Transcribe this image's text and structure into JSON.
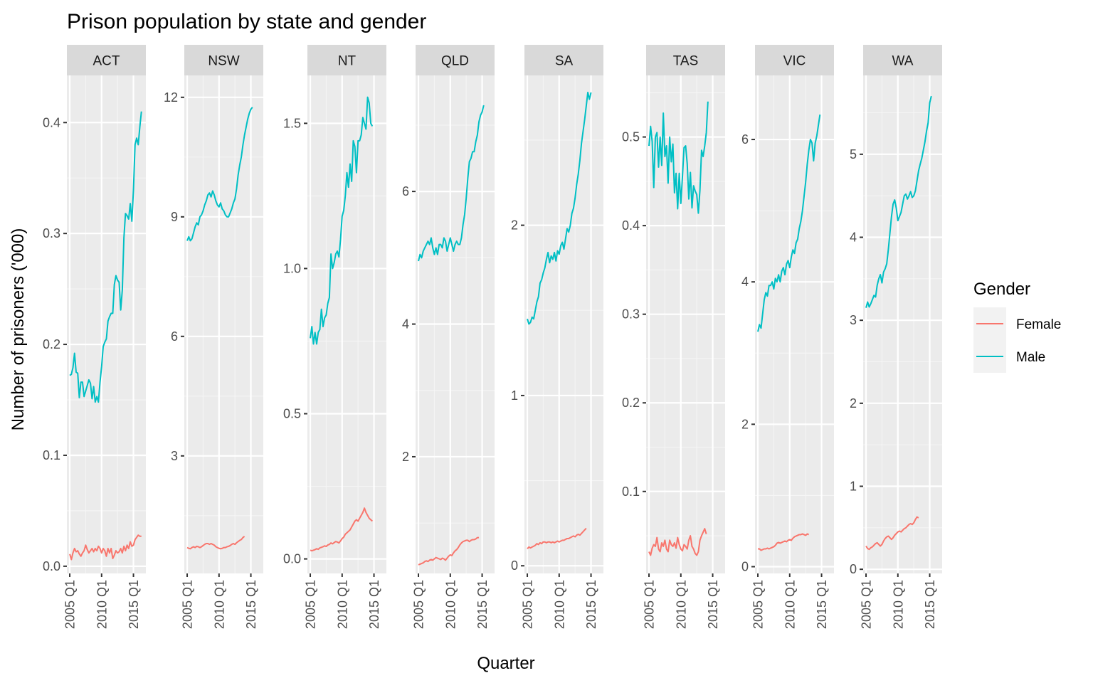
{
  "chart_data": {
    "type": "line",
    "title": "Prison population by state and gender",
    "xlabel": "Quarter",
    "ylabel": "Number of prisoners ('000)",
    "x_ticks": [
      "2005 Q1",
      "2010 Q1",
      "2015 Q1"
    ],
    "x_tick_values": [
      2005,
      2010,
      2015
    ],
    "x_range": [
      2004.55,
      2016.95
    ],
    "grid": true,
    "facet_by": "state",
    "legend": {
      "title": "Gender",
      "placement": "right",
      "entries": [
        {
          "name": "Female",
          "color": "#F8766D"
        },
        {
          "name": "Male",
          "color": "#00BFC4"
        }
      ]
    },
    "series_years": [
      2005.0,
      2005.25,
      2005.5,
      2005.75,
      2006.0,
      2006.25,
      2006.5,
      2006.75,
      2007.0,
      2007.25,
      2007.5,
      2007.75,
      2008.0,
      2008.25,
      2008.5,
      2008.75,
      2009.0,
      2009.25,
      2009.5,
      2009.75,
      2010.0,
      2010.25,
      2010.5,
      2010.75,
      2011.0,
      2011.25,
      2011.5,
      2011.75,
      2012.0,
      2012.25,
      2012.5,
      2012.75,
      2013.0,
      2013.25,
      2013.5,
      2013.75,
      2014.0,
      2014.25,
      2014.5,
      2014.75,
      2015.0,
      2015.25,
      2015.5,
      2015.75,
      2016.0,
      2016.25,
      2016.5,
      2016.75
    ],
    "panels": [
      {
        "state": "ACT",
        "y_range": [
          -0.0065,
          0.4425
        ],
        "y_ticks": [
          0.0,
          0.1,
          0.2,
          0.3,
          0.4
        ],
        "y_tick_labels": [
          "0.0",
          "0.1",
          "0.2",
          "0.3",
          "0.4"
        ],
        "series": [
          {
            "name": "Male",
            "values": [
              0.172,
              0.173,
              0.179,
              0.192,
              0.175,
              0.174,
              0.152,
              0.166,
              0.166,
              0.153,
              0.158,
              0.163,
              0.168,
              0.165,
              0.151,
              0.162,
              0.148,
              0.153,
              0.148,
              0.166,
              0.18,
              0.198,
              0.202,
              0.205,
              0.221,
              0.225,
              0.228,
              0.228,
              0.254,
              0.262,
              0.258,
              0.256,
              0.231,
              0.249,
              0.296,
              0.318,
              0.316,
              0.313,
              0.327,
              0.311,
              0.339,
              0.38,
              0.386,
              0.38,
              0.396,
              0.41
            ]
          },
          {
            "name": "Female",
            "values": [
              0.011,
              0.006,
              0.012,
              0.016,
              0.013,
              0.014,
              0.011,
              0.009,
              0.012,
              0.014,
              0.019,
              0.015,
              0.012,
              0.014,
              0.016,
              0.013,
              0.016,
              0.014,
              0.018,
              0.016,
              0.012,
              0.016,
              0.014,
              0.009,
              0.016,
              0.012,
              0.016,
              0.007,
              0.01,
              0.014,
              0.012,
              0.013,
              0.016,
              0.012,
              0.018,
              0.014,
              0.019,
              0.016,
              0.022,
              0.018,
              0.019,
              0.024,
              0.026,
              0.028,
              0.027,
              0.027
            ]
          }
        ]
      },
      {
        "state": "NSW",
        "y_range": [
          0.05,
          12.55
        ],
        "y_ticks": [
          3,
          6,
          9,
          12
        ],
        "y_tick_labels": [
          "3",
          "6",
          "9",
          "12"
        ],
        "series": [
          {
            "name": "Male",
            "values": [
              8.4,
              8.5,
              8.4,
              8.45,
              8.6,
              8.75,
              8.85,
              8.8,
              9.0,
              9.05,
              9.15,
              9.3,
              9.4,
              9.55,
              9.6,
              9.5,
              9.65,
              9.55,
              9.4,
              9.3,
              9.25,
              9.35,
              9.2,
              9.15,
              9.05,
              9.0,
              9.0,
              9.1,
              9.2,
              9.35,
              9.45,
              9.7,
              10.05,
              10.3,
              10.5,
              10.8,
              11.05,
              11.25,
              11.45,
              11.6,
              11.7,
              11.75
            ]
          },
          {
            "name": "Female",
            "values": [
              0.7,
              0.68,
              0.67,
              0.7,
              0.72,
              0.7,
              0.73,
              0.72,
              0.7,
              0.72,
              0.75,
              0.78,
              0.8,
              0.8,
              0.78,
              0.8,
              0.78,
              0.76,
              0.72,
              0.7,
              0.68,
              0.67,
              0.68,
              0.7,
              0.7,
              0.72,
              0.73,
              0.75,
              0.78,
              0.8,
              0.78,
              0.82,
              0.85,
              0.88,
              0.9,
              0.95,
              0.98
            ]
          }
        ]
      },
      {
        "state": "NT",
        "y_range": [
          -0.05,
          1.665
        ],
        "y_ticks": [
          0.0,
          0.5,
          1.0,
          1.5
        ],
        "y_tick_labels": [
          "0.0",
          "0.5",
          "1.0",
          "1.5"
        ],
        "series": [
          {
            "name": "Male",
            "values": [
              0.76,
              0.8,
              0.74,
              0.78,
              0.74,
              0.78,
              0.79,
              0.86,
              0.8,
              0.83,
              0.84,
              0.88,
              0.9,
              1.05,
              1.0,
              1.02,
              1.05,
              1.06,
              1.04,
              1.1,
              1.18,
              1.2,
              1.25,
              1.33,
              1.28,
              1.36,
              1.3,
              1.44,
              1.42,
              1.33,
              1.44,
              1.44,
              1.46,
              1.52,
              1.5,
              1.48,
              1.59,
              1.57,
              1.5,
              1.49
            ]
          },
          {
            "name": "Female",
            "values": [
              0.03,
              0.028,
              0.03,
              0.032,
              0.035,
              0.033,
              0.038,
              0.04,
              0.042,
              0.045,
              0.043,
              0.048,
              0.05,
              0.055,
              0.052,
              0.056,
              0.06,
              0.058,
              0.055,
              0.062,
              0.07,
              0.075,
              0.085,
              0.09,
              0.095,
              0.1,
              0.11,
              0.12,
              0.13,
              0.135,
              0.13,
              0.14,
              0.15,
              0.16,
              0.175,
              0.16,
              0.15,
              0.14,
              0.135,
              0.13
            ]
          }
        ]
      },
      {
        "state": "QLD",
        "y_range": [
          0.24,
          7.75
        ],
        "y_ticks": [
          2,
          4,
          6
        ],
        "y_tick_labels": [
          "2",
          "4",
          "6"
        ],
        "series": [
          {
            "name": "Male",
            "values": [
              4.95,
              5.05,
              5.0,
              5.1,
              5.15,
              5.2,
              5.25,
              5.2,
              5.3,
              5.15,
              5.05,
              5.15,
              5.05,
              5.2,
              5.2,
              5.15,
              5.3,
              5.25,
              5.1,
              5.2,
              5.3,
              5.2,
              5.1,
              5.2,
              5.25,
              5.2,
              5.2,
              5.3,
              5.5,
              5.65,
              5.9,
              6.2,
              6.45,
              6.5,
              6.6,
              6.6,
              6.75,
              6.85,
              7.05,
              7.15,
              7.2,
              7.3
            ]
          },
          {
            "name": "Female",
            "values": [
              0.37,
              0.38,
              0.39,
              0.4,
              0.42,
              0.43,
              0.42,
              0.44,
              0.45,
              0.44,
              0.46,
              0.48,
              0.47,
              0.46,
              0.45,
              0.47,
              0.46,
              0.44,
              0.47,
              0.5,
              0.52,
              0.51,
              0.55,
              0.58,
              0.6,
              0.63,
              0.67,
              0.7,
              0.72,
              0.73,
              0.74,
              0.74,
              0.72,
              0.74,
              0.75,
              0.75,
              0.76,
              0.78,
              0.78
            ]
          }
        ]
      },
      {
        "state": "SA",
        "y_range": [
          -0.045,
          2.88
        ],
        "y_ticks": [
          0,
          1,
          2
        ],
        "y_tick_labels": [
          "0",
          "1",
          "2"
        ],
        "series": [
          {
            "name": "Male",
            "values": [
              1.45,
              1.42,
              1.43,
              1.46,
              1.45,
              1.5,
              1.55,
              1.58,
              1.66,
              1.68,
              1.72,
              1.75,
              1.8,
              1.84,
              1.78,
              1.82,
              1.8,
              1.84,
              1.79,
              1.85,
              1.83,
              1.88,
              1.9,
              1.86,
              1.92,
              1.98,
              1.96,
              2.0,
              2.07,
              2.1,
              2.16,
              2.24,
              2.3,
              2.38,
              2.48,
              2.55,
              2.62,
              2.7,
              2.78,
              2.74,
              2.78
            ]
          },
          {
            "name": "Female",
            "values": [
              0.1,
              0.11,
              0.105,
              0.11,
              0.115,
              0.12,
              0.13,
              0.125,
              0.135,
              0.13,
              0.14,
              0.14,
              0.135,
              0.14,
              0.14,
              0.135,
              0.14,
              0.135,
              0.14,
              0.145,
              0.14,
              0.145,
              0.15,
              0.15,
              0.155,
              0.16,
              0.16,
              0.165,
              0.17,
              0.175,
              0.17,
              0.18,
              0.185,
              0.18,
              0.19,
              0.2,
              0.21,
              0.22
            ]
          }
        ]
      },
      {
        "state": "TAS",
        "y_range": [
          0.0075,
          0.5695
        ],
        "y_ticks": [
          0.1,
          0.2,
          0.3,
          0.4,
          0.5
        ],
        "y_tick_labels": [
          "0.1",
          "0.2",
          "0.3",
          "0.4",
          "0.5"
        ],
        "series": [
          {
            "name": "Male",
            "values": [
              0.49,
              0.512,
              0.495,
              0.443,
              0.5,
              0.505,
              0.466,
              0.5,
              0.468,
              0.527,
              0.478,
              0.49,
              0.448,
              0.5,
              0.472,
              0.492,
              0.437,
              0.459,
              0.419,
              0.459,
              0.425,
              0.455,
              0.488,
              0.49,
              0.47,
              0.43,
              0.46,
              0.42,
              0.445,
              0.439,
              0.435,
              0.414,
              0.44,
              0.485,
              0.478,
              0.49,
              0.505,
              0.54
            ]
          },
          {
            "name": "Female",
            "values": [
              0.032,
              0.028,
              0.036,
              0.04,
              0.038,
              0.048,
              0.035,
              0.032,
              0.042,
              0.038,
              0.045,
              0.035,
              0.032,
              0.045,
              0.04,
              0.038,
              0.042,
              0.036,
              0.048,
              0.04,
              0.035,
              0.033,
              0.04,
              0.038,
              0.035,
              0.045,
              0.05,
              0.038,
              0.035,
              0.03,
              0.028,
              0.032,
              0.045,
              0.05,
              0.054,
              0.058,
              0.052
            ]
          }
        ]
      },
      {
        "state": "VIC",
        "y_range": [
          -0.095,
          6.9
        ],
        "y_ticks": [
          0,
          2,
          4,
          6
        ],
        "y_tick_labels": [
          "0",
          "2",
          "4",
          "6"
        ],
        "series": [
          {
            "name": "Male",
            "values": [
              3.3,
              3.4,
              3.35,
              3.55,
              3.75,
              3.85,
              3.8,
              3.95,
              3.95,
              4.0,
              3.9,
              4.05,
              4.0,
              4.1,
              4.0,
              4.15,
              4.2,
              4.1,
              4.25,
              4.3,
              4.2,
              4.35,
              4.45,
              4.4,
              4.55,
              4.6,
              4.75,
              4.85,
              5.0,
              5.2,
              5.4,
              5.65,
              5.85,
              6.0,
              5.95,
              5.7,
              5.95,
              6.05,
              6.2,
              6.35
            ]
          },
          {
            "name": "Female",
            "values": [
              0.25,
              0.25,
              0.23,
              0.24,
              0.25,
              0.25,
              0.26,
              0.25,
              0.26,
              0.27,
              0.28,
              0.3,
              0.33,
              0.34,
              0.33,
              0.34,
              0.35,
              0.36,
              0.35,
              0.37,
              0.38,
              0.37,
              0.4,
              0.42,
              0.43,
              0.44,
              0.45,
              0.45,
              0.46,
              0.45,
              0.44,
              0.46,
              0.45
            ]
          }
        ]
      },
      {
        "state": "WA",
        "y_range": [
          -0.05,
          5.95
        ],
        "y_ticks": [
          0,
          1,
          2,
          3,
          4,
          5
        ],
        "y_tick_labels": [
          "0",
          "1",
          "2",
          "3",
          "4",
          "5"
        ],
        "series": [
          {
            "name": "Male",
            "values": [
              3.15,
              3.22,
              3.16,
              3.2,
              3.25,
              3.3,
              3.28,
              3.42,
              3.5,
              3.55,
              3.45,
              3.58,
              3.62,
              3.68,
              3.85,
              4.05,
              4.25,
              4.4,
              4.45,
              4.35,
              4.2,
              4.25,
              4.3,
              4.4,
              4.5,
              4.52,
              4.46,
              4.5,
              4.55,
              4.48,
              4.5,
              4.56,
              4.68,
              4.8,
              4.88,
              4.95,
              5.05,
              5.15,
              5.28,
              5.38,
              5.62,
              5.7
            ]
          },
          {
            "name": "Female",
            "values": [
              0.28,
              0.25,
              0.24,
              0.26,
              0.27,
              0.29,
              0.31,
              0.32,
              0.3,
              0.28,
              0.3,
              0.34,
              0.37,
              0.39,
              0.4,
              0.38,
              0.36,
              0.38,
              0.41,
              0.43,
              0.45,
              0.46,
              0.45,
              0.47,
              0.49,
              0.5,
              0.52,
              0.54,
              0.55,
              0.54,
              0.56,
              0.6,
              0.63,
              0.62
            ]
          }
        ]
      }
    ]
  }
}
